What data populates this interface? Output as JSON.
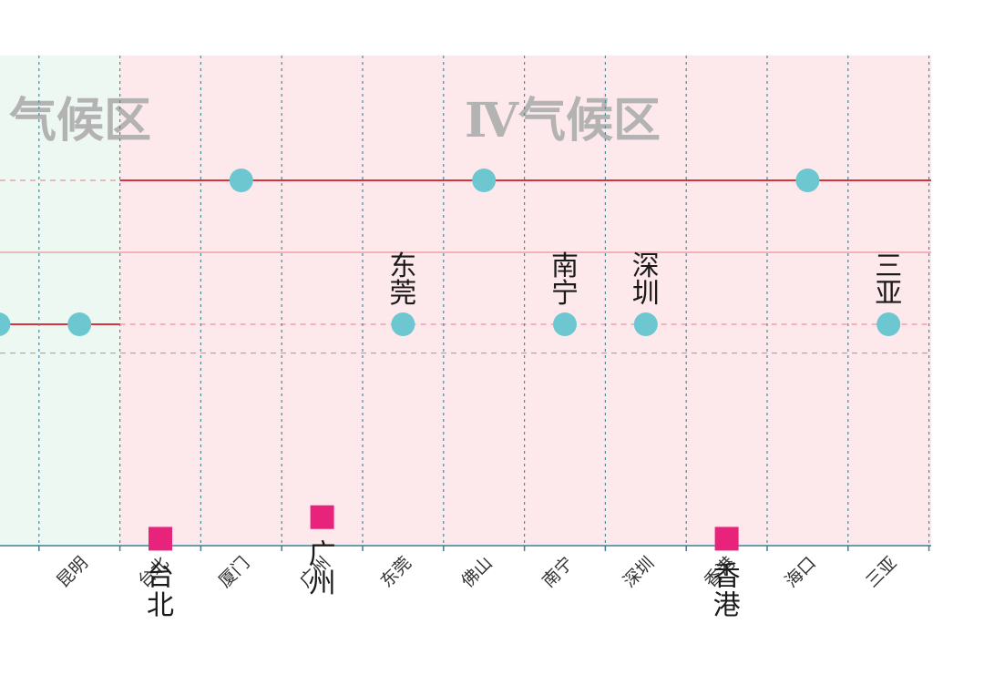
{
  "chart_data": {
    "type": "scatter",
    "zones": [
      {
        "label": "气候区",
        "color": "#ecf8f1"
      },
      {
        "label": "Ⅳ气候区",
        "color": "#fde9ec"
      }
    ],
    "zone_of_category": [
      "left",
      "left",
      "right",
      "right",
      "right",
      "right",
      "right",
      "right",
      "right",
      "right",
      "right",
      "right"
    ],
    "categories": [
      "",
      "昆明",
      "台北",
      "厦门",
      "广州",
      "东莞",
      "佛山",
      "南宁",
      "深圳",
      "香港",
      "海口",
      "三亚"
    ],
    "levels": {
      "upper_solid": 4,
      "upper_dashed": 4,
      "thin_solid": 3,
      "lower_solid": 2,
      "lower_dashed_a": 2,
      "lower_dashed_b": 1.6
    },
    "circles": [
      {
        "category": "",
        "level": 2
      },
      {
        "category": "昆明",
        "level": 2
      },
      {
        "category": "厦门",
        "level": 4
      },
      {
        "category": "佛山",
        "level": 4
      },
      {
        "category": "海口",
        "level": 4
      },
      {
        "category": "东莞",
        "level": 2,
        "label": "东莞"
      },
      {
        "category": "南宁",
        "level": 2,
        "label": "南宁"
      },
      {
        "category": "深圳",
        "level": 2,
        "label": "深圳"
      },
      {
        "category": "三亚",
        "level": 2,
        "label": "三亚"
      }
    ],
    "squares": [
      {
        "category": "台北",
        "level": -0.98,
        "label": "台北"
      },
      {
        "category": "广州",
        "level": -0.68,
        "label": "广州"
      },
      {
        "category": "香港",
        "level": -0.98,
        "label": "香港"
      }
    ],
    "colors": {
      "circle": "#6cc7d0",
      "square": "#e8237b",
      "red_line": "#d9323f",
      "grid": "#4d8a9a",
      "axis": "#3f7f93",
      "zone_title": "#b3b3b3"
    }
  }
}
